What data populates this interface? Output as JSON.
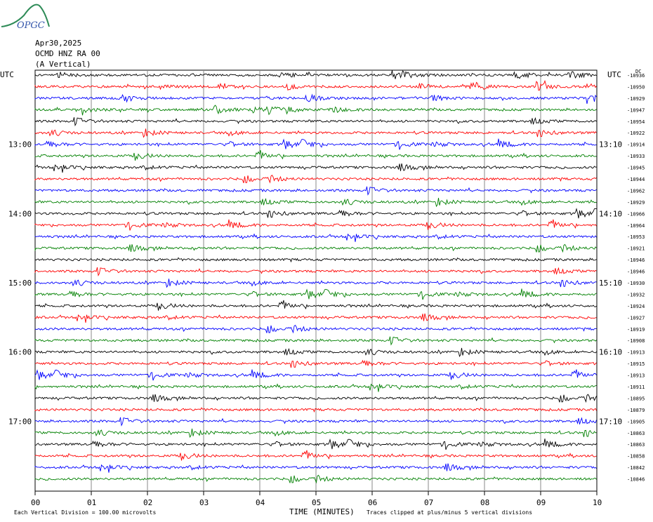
{
  "logo": {
    "text": "OPGC",
    "color": "#2e8b57",
    "text_color": "#3355aa"
  },
  "header": {
    "date": "Apr30,2025",
    "station": "OCMD HNZ RA 00",
    "component": "(A Vertical)"
  },
  "chart_data": {
    "type": "line",
    "title": "",
    "left_axis_label": "UTC",
    "right_axis_label": "UTC",
    "right_column_header": "DC",
    "left_time_labels": [
      "13:00",
      "14:00",
      "15:00",
      "16:00",
      "17:00"
    ],
    "right_time_labels": [
      "13:10",
      "14:10",
      "15:10",
      "16:10",
      "17:10"
    ],
    "hour_label_trace_index": [
      6,
      12,
      18,
      24,
      30
    ],
    "x_ticks": [
      "00",
      "01",
      "02",
      "03",
      "04",
      "05",
      "06",
      "07",
      "08",
      "09",
      "10"
    ],
    "xlim": [
      0,
      10
    ],
    "xlabel": "TIME (MINUTES)",
    "trace_colors": [
      "#000000",
      "#ff0000",
      "#0000ff",
      "#008000"
    ],
    "dc_offsets": [
      "-10936",
      "-10950",
      "-10929",
      "-10947",
      "-10954",
      "-10922",
      "-10914",
      "-10933",
      "-10945",
      "-10944",
      "-10962",
      "-10929",
      "-10966",
      "-10964",
      "-10953",
      "-10921",
      "-10946",
      "-10946",
      "-10930",
      "-10932",
      "-10924",
      "-10927",
      "-10919",
      "-10908",
      "-10913",
      "-10915",
      "-10913",
      "-10911",
      "-10895",
      "-10879",
      "-10905",
      "-10863",
      "-10863",
      "-10858",
      "-10842",
      "-10846"
    ],
    "trace_count": 36,
    "footer_left": "Each Vertical Division =  100.00 microvolts",
    "footer_right": "Traces clipped at plus/minus 5 vertical divisions"
  }
}
